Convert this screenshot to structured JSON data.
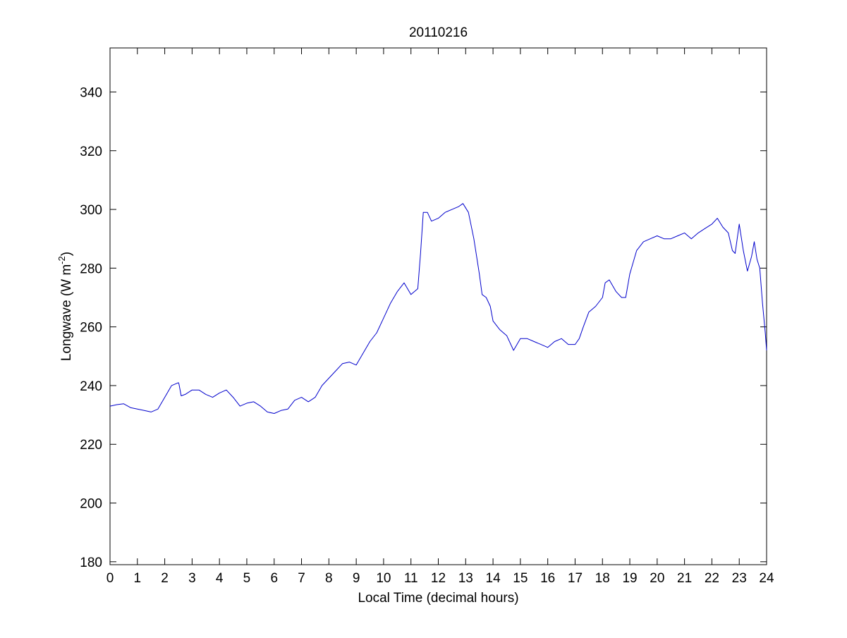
{
  "chart_data": {
    "type": "line",
    "title": "20110216",
    "xlabel": "Local Time (decimal hours)",
    "ylabel": {
      "main": "Longwave (W m",
      "superscript": "-2",
      "suffix": ")"
    },
    "xlim": [
      0,
      24
    ],
    "ylim": [
      179,
      355
    ],
    "xticks": [
      0,
      1,
      2,
      3,
      4,
      5,
      6,
      7,
      8,
      9,
      10,
      11,
      12,
      13,
      14,
      15,
      16,
      17,
      18,
      19,
      20,
      21,
      22,
      23,
      24
    ],
    "yticks": [
      180,
      200,
      220,
      240,
      260,
      280,
      300,
      320,
      340
    ],
    "grid": false,
    "legend": "none",
    "line_color": "#0000cc",
    "series": [
      {
        "x": [
          0,
          0.25,
          0.5,
          0.75,
          1.0,
          1.25,
          1.5,
          1.75,
          2.0,
          2.25,
          2.5,
          2.52,
          2.6,
          2.75,
          3.0,
          3.25,
          3.5,
          3.75,
          4.0,
          4.25,
          4.5,
          4.75,
          5.0,
          5.25,
          5.5,
          5.75,
          6.0,
          6.25,
          6.5,
          6.75,
          7.0,
          7.25,
          7.5,
          7.75,
          8.0,
          8.25,
          8.5,
          8.75,
          9.0,
          9.25,
          9.5,
          9.75,
          10.0,
          10.25,
          10.5,
          10.75,
          11.0,
          11.25,
          11.35,
          11.45,
          11.6,
          11.75,
          12.0,
          12.25,
          12.5,
          12.75,
          12.9,
          13.1,
          13.3,
          13.5,
          13.6,
          13.75,
          13.9,
          14.0,
          14.25,
          14.5,
          14.75,
          15.0,
          15.25,
          15.5,
          15.75,
          16.0,
          16.25,
          16.5,
          16.75,
          17.0,
          17.15,
          17.3,
          17.5,
          17.75,
          18.0,
          18.1,
          18.25,
          18.5,
          18.7,
          18.85,
          19.0,
          19.25,
          19.5,
          19.75,
          20.0,
          20.25,
          20.5,
          20.75,
          21.0,
          21.25,
          21.5,
          21.75,
          22.0,
          22.2,
          22.4,
          22.6,
          22.75,
          22.85,
          23.0,
          23.15,
          23.3,
          23.45,
          23.55,
          23.65,
          23.75,
          23.85,
          23.95,
          24.0
        ],
        "y": [
          233,
          233.5,
          233.8,
          232.5,
          232,
          231.5,
          231,
          232,
          236,
          240,
          241,
          240.5,
          236.5,
          237,
          238.5,
          238.5,
          237,
          236,
          237.5,
          238.5,
          236,
          233,
          234,
          234.5,
          233,
          231,
          230.5,
          231.5,
          232,
          235,
          236,
          234.5,
          236,
          240,
          242.5,
          245,
          247.5,
          248,
          247,
          251,
          255,
          258,
          263,
          268,
          272,
          275,
          271,
          273,
          285,
          299,
          299,
          296,
          297,
          299,
          300,
          301,
          302,
          299,
          290,
          278,
          271,
          270,
          267,
          262,
          259,
          257,
          252,
          256,
          256,
          255,
          254,
          253,
          255,
          256,
          254,
          254,
          256,
          260,
          265,
          267,
          270,
          275,
          276,
          272,
          270,
          270,
          278,
          286,
          289,
          290,
          291,
          290,
          290,
          291,
          292,
          290,
          292,
          293.5,
          295,
          297,
          294,
          292,
          286,
          285,
          295,
          286,
          279,
          284,
          289,
          283,
          280,
          268,
          258,
          252
        ]
      }
    ]
  }
}
